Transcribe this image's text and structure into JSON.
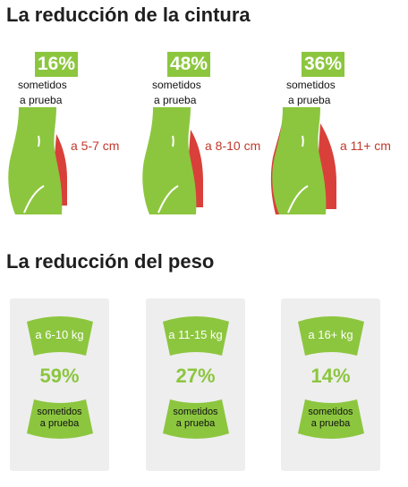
{
  "waist_title": "La reducción de la cintura",
  "weight_title": "La reducción del peso",
  "waist": [
    {
      "percent": "16%",
      "line1": "sometidos",
      "line2": "a prueba",
      "range": "a 5-7 cm"
    },
    {
      "percent": "48%",
      "line1": "sometidos",
      "line2": "a prueba",
      "range": "a 8-10 cm"
    },
    {
      "percent": "36%",
      "line1": "sometidos",
      "line2": "a prueba",
      "range": "a 11+ cm"
    }
  ],
  "weight": [
    {
      "range": "a 6-10 kg",
      "percent": "59%",
      "line1": "sometidos",
      "line2": "a prueba"
    },
    {
      "range": "a 11-15 kg",
      "percent": "27%",
      "line1": "sometidos",
      "line2": "a prueba"
    },
    {
      "range": "a 16+ kg",
      "percent": "14%",
      "line1": "sometidos",
      "line2": "a prueba"
    }
  ],
  "colors": {
    "green": "#8cc63f",
    "red": "#d9403a",
    "card": "#eeeeee"
  }
}
